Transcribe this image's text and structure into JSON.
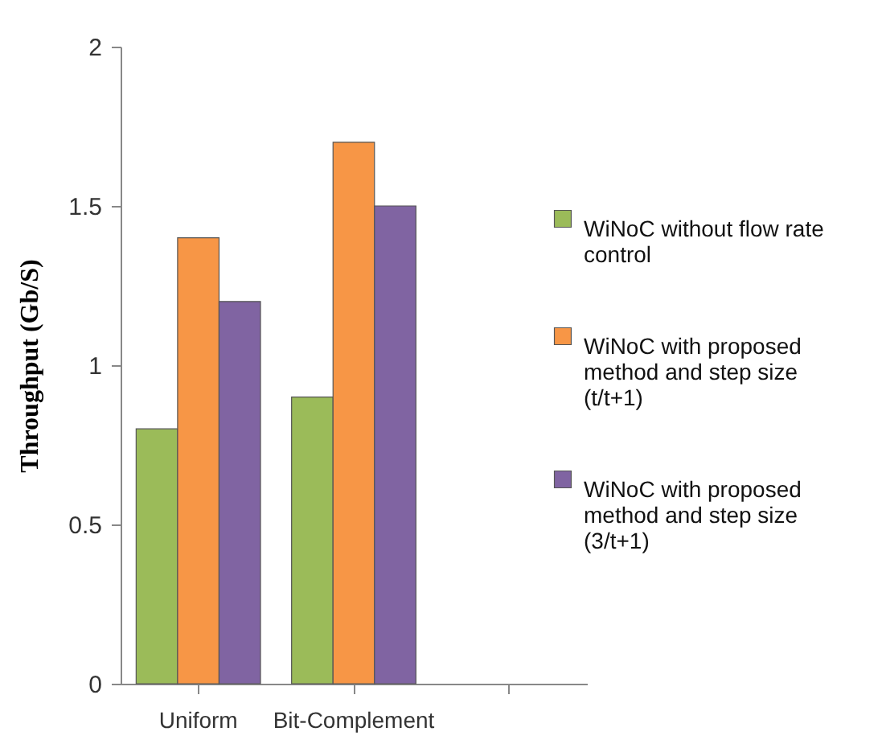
{
  "chart_data": {
    "type": "bar",
    "ylabel": "Throughput  (Gb/S)",
    "categories": [
      "Uniform",
      "Bit-Complement",
      null
    ],
    "series": [
      {
        "name": "WiNoC without flow rate control",
        "color": "#9bbb59",
        "values": [
          0.8,
          0.9,
          null
        ]
      },
      {
        "name": "WiNoC with proposed method and step size (t/t+1)",
        "color": "#f79646",
        "values": [
          1.4,
          1.7,
          null
        ]
      },
      {
        "name": "WiNoC with proposed method and step size (3/t+1)",
        "color": "#8064a2",
        "values": [
          1.2,
          1.5,
          null
        ]
      }
    ],
    "ylim": [
      0,
      2
    ],
    "yticks": [
      0,
      0.5,
      1,
      1.5,
      2
    ],
    "grid": false,
    "legend": "right"
  }
}
